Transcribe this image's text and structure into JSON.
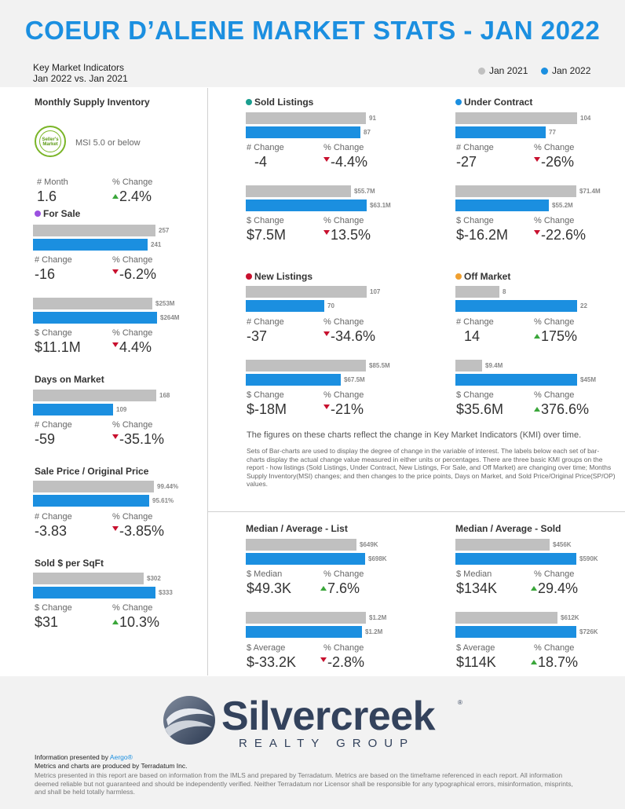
{
  "header": {
    "title": "COEUR D’ALENE MARKET STATS - JAN 2022",
    "kmi_line1": "Key Market Indicators",
    "kmi_line2": "Jan 2022 vs. Jan 2021",
    "legend_prev": "Jan 2021",
    "legend_curr": "Jan 2022",
    "color_prev": "#c0c0c0",
    "color_curr": "#1b8fe0"
  },
  "msi": {
    "title": "Monthly Supply Inventory",
    "badge_line1": "Seller's",
    "badge_line2": "Market",
    "note": "MSI 5.0 or below",
    "label_a": "# Month",
    "value_a": "1.6",
    "label_b": "% Change",
    "value_b": "2.4%"
  },
  "for_sale": {
    "title": "For Sale",
    "dot_color": "#9b51e0",
    "bars1_prev": "257",
    "bars1_curr": "241",
    "label_a1": "# Change",
    "value_a1": "-16",
    "label_b1": "% Change",
    "value_b1": "-6.2%",
    "bars2_prev": "$253M",
    "bars2_curr": "$264M",
    "label_a2": "$ Change",
    "value_a2": "$11.1M",
    "label_b2": "% Change",
    "value_b2": "4.4%"
  },
  "dom": {
    "title": "Days on Market",
    "bars_prev": "168",
    "bars_curr": "109",
    "label_a": "# Change",
    "value_a": "-59",
    "label_b": "% Change",
    "value_b": "-35.1%"
  },
  "sp_op": {
    "title": "Sale Price / Original Price",
    "bars_prev": "99.44%",
    "bars_curr": "95.61%",
    "label_a": "# Change",
    "value_a": "-3.83",
    "label_b": "% Change",
    "value_b": "-3.85%"
  },
  "sqft": {
    "title": "Sold $ per SqFt",
    "bars_prev": "$302",
    "bars_curr": "$333",
    "label_a": "$ Change",
    "value_a": "$31",
    "label_b": "% Change",
    "value_b": "10.3%"
  },
  "sold": {
    "title": "Sold Listings",
    "dot_color": "#1a9e8f",
    "bars1_prev": "91",
    "bars1_curr": "87",
    "label_a1": "# Change",
    "value_a1": "-4",
    "label_b1": "% Change",
    "value_b1": "-4.4%",
    "bars2_prev": "$55.7M",
    "bars2_curr": "$63.1M",
    "label_a2": "$ Change",
    "value_a2": "$7.5M",
    "label_b2": "% Change",
    "value_b2": "13.5%"
  },
  "under_contract": {
    "title": "Under Contract",
    "dot_color": "#1b8fe0",
    "bars1_prev": "104",
    "bars1_curr": "77",
    "label_a1": "# Change",
    "value_a1": "-27",
    "label_b1": "% Change",
    "value_b1": "-26%",
    "bars2_prev": "$71.4M",
    "bars2_curr": "$55.2M",
    "label_a2": "$ Change",
    "value_a2": "$-16.2M",
    "label_b2": "% Change",
    "value_b2": "-22.6%"
  },
  "new_listings": {
    "title": "New Listings",
    "dot_color": "#c8102e",
    "bars1_prev": "107",
    "bars1_curr": "70",
    "label_a1": "# Change",
    "value_a1": "-37",
    "label_b1": "% Change",
    "value_b1": "-34.6%",
    "bars2_prev": "$85.5M",
    "bars2_curr": "$67.5M",
    "label_a2": "$ Change",
    "value_a2": "$-18M",
    "label_b2": "% Change",
    "value_b2": "-21%"
  },
  "off_market": {
    "title": "Off Market",
    "dot_color": "#f0a030",
    "bars1_prev": "8",
    "bars1_curr": "22",
    "label_a1": "# Change",
    "value_a1": "14",
    "label_b1": "% Change",
    "value_b1": "175%",
    "bars2_prev": "$9.4M",
    "bars2_curr": "$45M",
    "label_a2": "$ Change",
    "value_a2": "$35.6M",
    "label_b2": "% Change",
    "value_b2": "376.6%"
  },
  "description": {
    "headline": "The figures on these charts reflect the change in Key Market Indicators (KMI) over time.",
    "body": "Sets of Bar-charts are used to display the degree of change in the variable of interest. The labels below each set of bar-charts display the actual change value measured in either units or percentages. There are three basic KMI groups on the report - how listings (Sold Listings, Under Contract, New Listings, For Sale, and Off Market) are changing over time; Months Supply Inventory(MSI) changes; and then changes to the price points, Days on Market, and Sold Price/Original Price(SP/OP) values."
  },
  "list_prices": {
    "title": "Median / Average - List",
    "bars1_prev": "$649K",
    "bars1_curr": "$698K",
    "label_a1": "$ Median",
    "value_a1": "$49.3K",
    "label_b1": "% Change",
    "value_b1": "7.6%",
    "bars2_prev": "$1.2M",
    "bars2_curr": "$1.2M",
    "label_a2": "$ Average",
    "value_a2": "$-33.2K",
    "label_b2": "% Change",
    "value_b2": "-2.8%"
  },
  "sold_prices": {
    "title": "Median / Average - Sold",
    "bars1_prev": "$456K",
    "bars1_curr": "$590K",
    "label_a1": "$ Median",
    "value_a1": "$134K",
    "label_b1": "% Change",
    "value_b1": "29.4%",
    "bars2_prev": "$612K",
    "bars2_curr": "$726K",
    "label_a2": "$ Average",
    "value_a2": "$114K",
    "label_b2": "% Change",
    "value_b2": "18.7%"
  },
  "footer": {
    "logo_word": "Silvercreek",
    "logo_reg": "®",
    "logo_sub": "REALTY GROUP",
    "presented_prefix": "Information presented by ",
    "presented_link": "Aergo®",
    "produced": "Metrics and charts are produced by Terradatum Inc.",
    "disclaimer": "Metrics presented in this report are based on information from the IMLS and prepared by Terradatum. Metrics are based on the timeframe referenced in each report. All information deemed reliable but not guaranteed and should be independently verified. Neither Terradatum nor Licensor shall be responsible for any typographical errors, misinformation, misprints, and shall be held totally harmless."
  }
}
